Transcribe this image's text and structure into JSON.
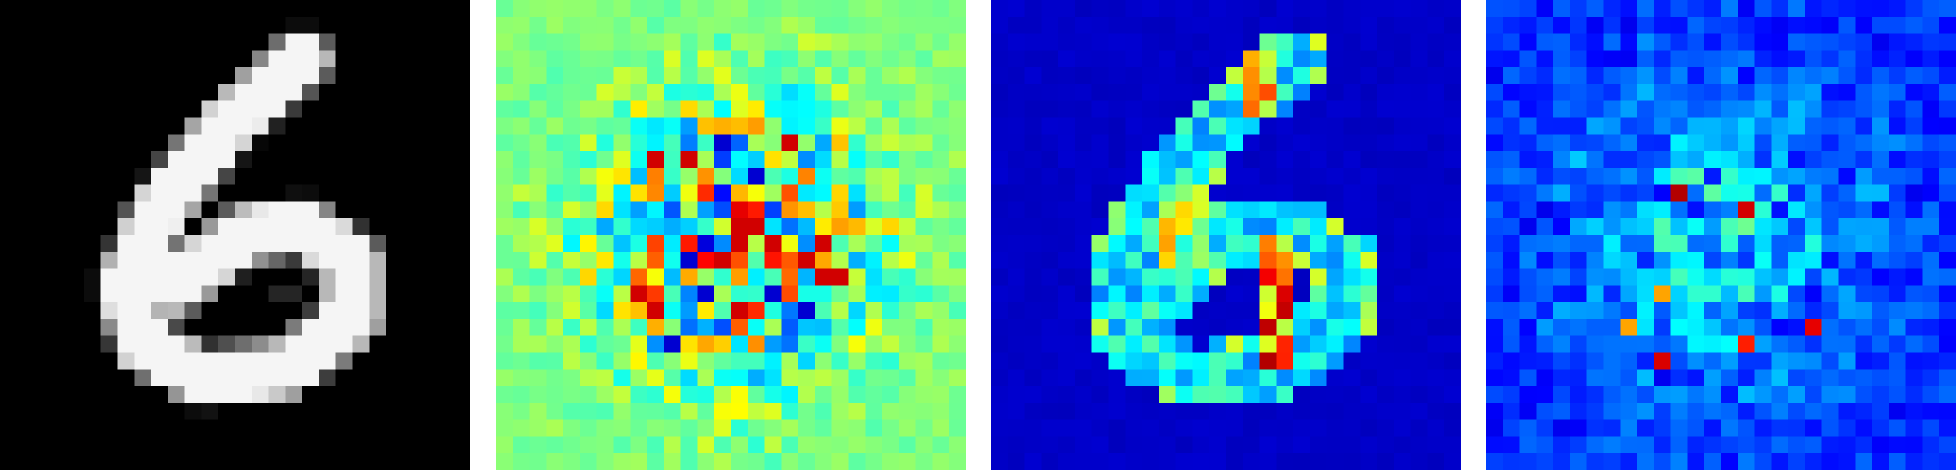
{
  "figure": {
    "grid_size": 28,
    "panels": [
      {
        "id": "input-digit",
        "colormap": "gray",
        "background": "#000000"
      },
      {
        "id": "signed-attribution-map",
        "colormap": "jet",
        "background": "#7fff7f"
      },
      {
        "id": "magnitude-map-smooth",
        "colormap": "jet",
        "background": "#00008b"
      },
      {
        "id": "magnitude-map-noisy",
        "colormap": "jet",
        "background": "#0000a8"
      }
    ]
  }
}
